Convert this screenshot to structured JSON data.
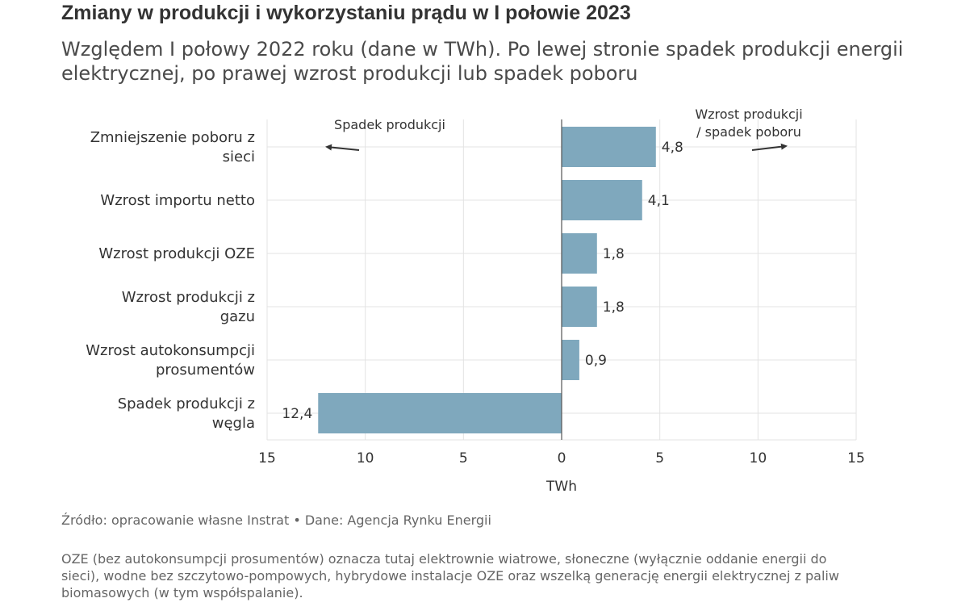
{
  "header": {
    "title": "Zmiany w produkcji i wykorzystaniu prądu w I połowie 2023",
    "subtitle": "Względem I połowy 2022 roku (dane w TWh). Po lewej stronie spadek produkcji energii elektrycznej, po prawej wzrost produkcji lub spadek poboru"
  },
  "footer": {
    "source": "Źródło: opracowanie własne Instrat • Dane: Agencja Rynku Energii",
    "note": "OZE (bez autokonsumpcji prosumentów) oznacza tutaj elektrownie wiatrowe, słoneczne (wyłącznie oddanie energii do sieci), wodne bez szczytowo-pompowych, hybrydowe instalacje OZE oraz wszelką generację energii elektrycznej z paliw biomasowych (w tym współspalanie)."
  },
  "colors": {
    "bar": "#7fa8bd",
    "grid": "#e3e3e3",
    "zero_line": "#555555",
    "text": "#333333"
  },
  "chart_data": {
    "type": "bar",
    "orientation": "horizontal",
    "categories": [
      [
        "Zmniejszenie poboru z",
        "sieci"
      ],
      [
        "Wzrost importu netto"
      ],
      [
        "Wzrost produkcji OZE"
      ],
      [
        "Wzrost produkcji z",
        "gazu"
      ],
      [
        "Wzrost autokonsumpcji",
        "prosumentów"
      ],
      [
        "Spadek produkcji z",
        "węgla"
      ]
    ],
    "values": [
      4.8,
      4.1,
      1.8,
      1.8,
      0.9,
      -12.4
    ],
    "data_labels": [
      "4,8",
      "4,1",
      "1,8",
      "1,8",
      "0,9",
      "12,4"
    ],
    "xlim": [
      -15,
      15
    ],
    "x_ticks": [
      -15,
      -10,
      -5,
      0,
      5,
      10,
      15
    ],
    "x_tick_labels": [
      "15",
      "10",
      "5",
      "0",
      "5",
      "10",
      "15"
    ],
    "xlabel": "TWh",
    "grid": true,
    "annotations": [
      {
        "lines": [
          "Spadek produkcji"
        ],
        "arrow": "left"
      },
      {
        "lines": [
          "Wzrost produkcji",
          "/ spadek poboru"
        ],
        "arrow": "right"
      }
    ]
  }
}
